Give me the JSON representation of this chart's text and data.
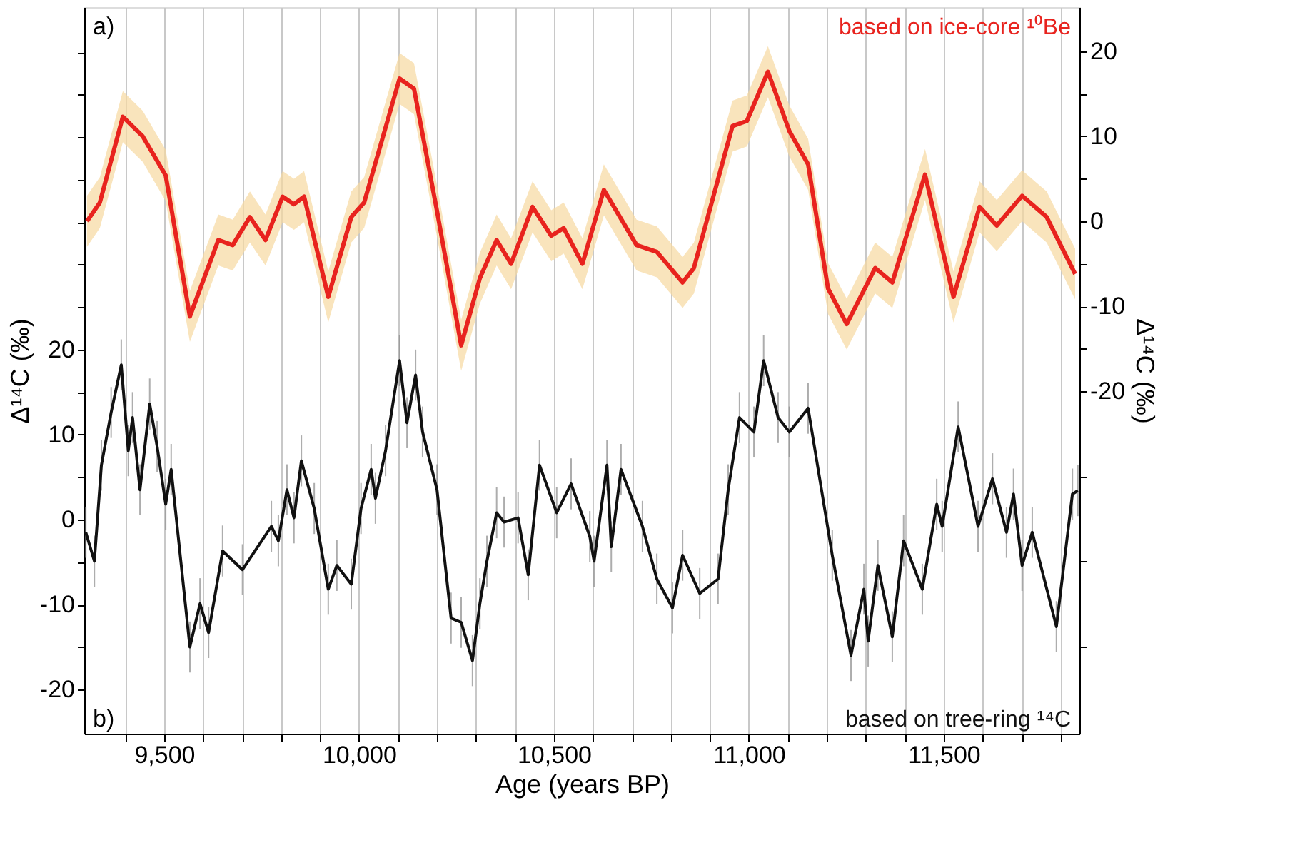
{
  "chart_data": {
    "type": "line",
    "xlabel": "Age (years BP)",
    "ylabel": "Δ¹⁴C (‰)",
    "y2label": "Δ¹⁴C (‰)",
    "annotations": [
      "a)",
      "b)"
    ],
    "xlim": [
      9295,
      11848
    ],
    "xticks": [
      {
        "value": 9400,
        "label": null
      },
      {
        "value": 9500,
        "label": "9,500"
      },
      {
        "value": 9600,
        "label": null
      },
      {
        "value": 9700,
        "label": null
      },
      {
        "value": 9800,
        "label": null
      },
      {
        "value": 9900,
        "label": null
      },
      {
        "value": 10000,
        "label": "10,000"
      },
      {
        "value": 10100,
        "label": null
      },
      {
        "value": 10200,
        "label": null
      },
      {
        "value": 10300,
        "label": null
      },
      {
        "value": 10400,
        "label": null
      },
      {
        "value": 10500,
        "label": "10,500"
      },
      {
        "value": 10600,
        "label": null
      },
      {
        "value": 10700,
        "label": null
      },
      {
        "value": 10800,
        "label": null
      },
      {
        "value": 10900,
        "label": null
      },
      {
        "value": 11000,
        "label": "11,000"
      },
      {
        "value": 11100,
        "label": null
      },
      {
        "value": 11200,
        "label": null
      },
      {
        "value": 11300,
        "label": null
      },
      {
        "value": 11400,
        "label": null
      },
      {
        "value": 11500,
        "label": "11,500"
      },
      {
        "value": 11600,
        "label": null
      },
      {
        "value": 11700,
        "label": null
      },
      {
        "value": 11800,
        "label": null
      }
    ],
    "ylim": [
      -25.2,
      60.3
    ],
    "yticks": [
      -20,
      {
        "value": -15,
        "label": null
      },
      -10,
      {
        "value": -5,
        "label": null
      },
      0,
      {
        "value": 5,
        "label": null
      },
      10,
      {
        "value": 15,
        "label": null
      },
      20,
      {
        "value": 25,
        "label": null
      },
      {
        "value": 30,
        "label": null
      },
      {
        "value": 35,
        "label": null
      },
      {
        "value": 40,
        "label": null
      },
      {
        "value": 45,
        "label": null
      },
      {
        "value": 50,
        "label": null
      },
      {
        "value": 55,
        "label": null
      }
    ],
    "y2lim": [
      -60.3,
      25.2
    ],
    "y2ticks": [
      {
        "value": -50,
        "label": null
      },
      {
        "value": -40,
        "label": null
      },
      {
        "value": -30,
        "label": null
      },
      -20,
      {
        "value": -15,
        "label": null
      },
      -10,
      {
        "value": -5,
        "label": null
      },
      0,
      {
        "value": 5,
        "label": null
      },
      10,
      {
        "value": 15,
        "label": null
      },
      20
    ],
    "grid": "x",
    "line_style": "solid",
    "series": [
      {
        "name": "based on ice-core ¹⁰Be",
        "color": "#e8231e",
        "axis": "y2",
        "x": [
          9302,
          9335,
          9394,
          9445,
          9504,
          9566,
          9639,
          9676,
          9720,
          9760,
          9804,
          9833,
          9859,
          9921,
          9980,
          10013,
          10104,
          10141,
          10200,
          10262,
          10310,
          10353,
          10390,
          10445,
          10493,
          10525,
          10573,
          10628,
          10712,
          10764,
          10830,
          10859,
          10958,
          10995,
          11049,
          11104,
          11152,
          11203,
          11251,
          11324,
          11368,
          11452,
          11525,
          11592,
          11636,
          11701,
          11764,
          11837
        ],
        "values": [
          0,
          2.2,
          12.3,
          10,
          5.4,
          -11.2,
          -2.2,
          -2.8,
          0.5,
          -2.2,
          2.9,
          2,
          2.9,
          -8.9,
          0.5,
          2.2,
          16.8,
          15.6,
          1.2,
          -14.6,
          -6.7,
          -2.2,
          -5,
          1.7,
          -1.7,
          -0.8,
          -5,
          3.7,
          -2.8,
          -3.6,
          -7.2,
          -5.5,
          11.2,
          11.8,
          17.6,
          10.6,
          6.7,
          -7.9,
          -12.1,
          -5.5,
          -7.2,
          5.5,
          -8.9,
          1.7,
          -0.5,
          3,
          0.5,
          -6.2
        ],
        "lower": [
          -3,
          -0.8,
          9.3,
          7,
          2.4,
          -14.2,
          -5.2,
          -5.8,
          -2.5,
          -5.2,
          -0.1,
          -1,
          -0.1,
          -11.9,
          -2.5,
          -0.8,
          13.8,
          12.6,
          -1.8,
          -17.6,
          -9.7,
          -5.2,
          -8,
          -1.3,
          -4.7,
          -3.8,
          -8,
          0.7,
          -5.8,
          -6.6,
          -10.2,
          -8.5,
          8.2,
          8.8,
          14.6,
          7.6,
          3.7,
          -10.9,
          -15.1,
          -8.5,
          -10.2,
          2.5,
          -11.9,
          -1.3,
          -3.5,
          0,
          -2.5,
          -9.2
        ],
        "upper": [
          3,
          5.2,
          15.3,
          13,
          8.4,
          -8.2,
          0.8,
          0.2,
          3.5,
          0.8,
          5.9,
          5,
          5.9,
          -5.9,
          3.5,
          5.2,
          19.8,
          18.6,
          4.2,
          -11.6,
          -3.7,
          0.8,
          -2,
          4.7,
          1.3,
          2.2,
          -2,
          6.7,
          0.2,
          -0.6,
          -4.2,
          -2.5,
          14.2,
          14.8,
          20.6,
          13.6,
          9.7,
          -4.9,
          -9.1,
          -2.5,
          -4.2,
          8.5,
          -5.9,
          4.7,
          2.5,
          6,
          3.5,
          -3.2
        ]
      },
      {
        "name": "based on tree-ring ¹⁴C",
        "color": "#111111",
        "axis": "y",
        "x": [
          9299,
          9321,
          9339,
          9364,
          9390,
          9408,
          9419,
          9438,
          9463,
          9482,
          9504,
          9518,
          9566,
          9592,
          9614,
          9650,
          9701,
          9775,
          9793,
          9815,
          9833,
          9852,
          9885,
          9921,
          9943,
          9980,
          10005,
          10031,
          10042,
          10068,
          10104,
          10123,
          10145,
          10163,
          10200,
          10236,
          10262,
          10291,
          10310,
          10328,
          10353,
          10372,
          10408,
          10434,
          10463,
          10507,
          10544,
          10592,
          10603,
          10636,
          10647,
          10672,
          10727,
          10764,
          10804,
          10830,
          10874,
          10921,
          10947,
          10976,
          11013,
          11038,
          11075,
          11104,
          11152,
          11214,
          11262,
          11295,
          11306,
          11331,
          11368,
          11397,
          11445,
          11482,
          11496,
          11537,
          11588,
          11625,
          11661,
          11679,
          11701,
          11727,
          11789,
          11830,
          11844
        ],
        "values": [
          -1.5,
          -4.9,
          6.4,
          12.6,
          18.2,
          8.1,
          12,
          3.5,
          13.6,
          8.6,
          1.8,
          5.9,
          -15,
          -9.9,
          -13.3,
          -3.7,
          -5.9,
          -0.8,
          -2.5,
          3.5,
          0.2,
          6.9,
          1.3,
          -8.2,
          -5.4,
          -7.6,
          1.3,
          5.9,
          2.5,
          8.1,
          18.7,
          11.4,
          17,
          10.3,
          3.5,
          -11.6,
          -12.1,
          -16.6,
          -9.9,
          -4.9,
          0.8,
          -0.3,
          0.2,
          -6.5,
          6.4,
          0.8,
          4.2,
          -2,
          -4.9,
          6.4,
          -3.2,
          5.9,
          -0.8,
          -7,
          -10.4,
          -4.2,
          -8.7,
          -7,
          3.5,
          12,
          10.3,
          18.7,
          12,
          10.3,
          13.1,
          -4.2,
          -16,
          -8.2,
          -14.3,
          -5.4,
          -13.8,
          -2.5,
          -8.2,
          1.8,
          -0.8,
          10.9,
          -0.8,
          4.8,
          -1.5,
          3,
          -5.4,
          -1.5,
          -12.6,
          3,
          3.4
        ],
        "errors": [
          3,
          3,
          3,
          3,
          3,
          3,
          3,
          3,
          3,
          3,
          3,
          3,
          3,
          3,
          3,
          3,
          3,
          3,
          3,
          3,
          3,
          3,
          3,
          3,
          3,
          3,
          3,
          3,
          3,
          3,
          3,
          3,
          3,
          3,
          3,
          3,
          3,
          3,
          3,
          3,
          3,
          3,
          3,
          3,
          3,
          3,
          3,
          3,
          3,
          3,
          3,
          3,
          3,
          3,
          3,
          3,
          3,
          3,
          3,
          3,
          3,
          3,
          3,
          3,
          3,
          3,
          3,
          3,
          3,
          3,
          3,
          3,
          3,
          3,
          3,
          3,
          3,
          3,
          3,
          3,
          3,
          3,
          3,
          3,
          3
        ]
      }
    ]
  }
}
